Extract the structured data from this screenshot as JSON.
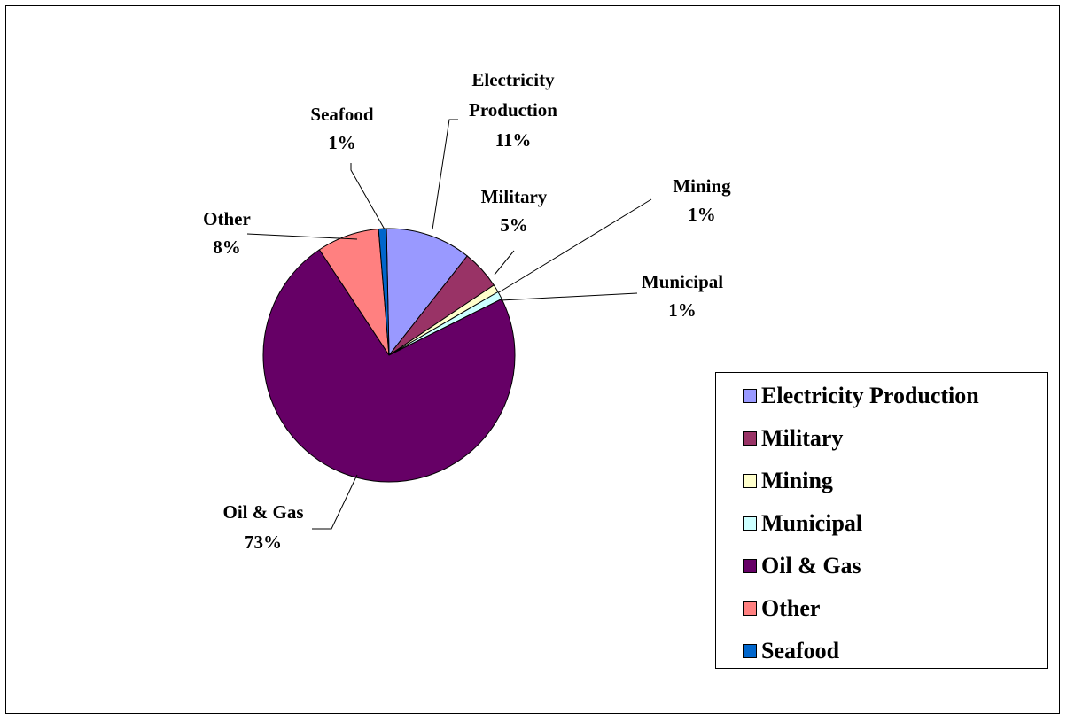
{
  "chart_data": {
    "type": "pie",
    "title": "",
    "slices": [
      {
        "name": "Electricity Production",
        "value": 11,
        "label_lines": [
          "Electricity",
          "Production",
          "11%"
        ],
        "color": "#9999FF"
      },
      {
        "name": "Military",
        "value": 5,
        "label_lines": [
          "Military",
          "5%"
        ],
        "color": "#993366"
      },
      {
        "name": "Mining",
        "value": 1,
        "label_lines": [
          "Mining",
          "1%"
        ],
        "color": "#FFFFCC"
      },
      {
        "name": "Municipal",
        "value": 1,
        "label_lines": [
          "Municipal",
          "1%"
        ],
        "color": "#CCFFFF"
      },
      {
        "name": "Oil & Gas",
        "value": 73,
        "label_lines": [
          "Oil & Gas",
          "73%"
        ],
        "color": "#660066"
      },
      {
        "name": "Other",
        "value": 8,
        "label_lines": [
          "Other",
          "8%"
        ],
        "color": "#FF8080"
      },
      {
        "name": "Seafood",
        "value": 1,
        "label_lines": [
          "Seafood",
          "1%"
        ],
        "color": "#0066CC"
      }
    ],
    "legend": {
      "placement": "right",
      "entries": [
        "Electricity Production",
        "Military",
        "Mining",
        "Municipal",
        "Oil & Gas",
        "Other",
        "Seafood"
      ]
    }
  }
}
